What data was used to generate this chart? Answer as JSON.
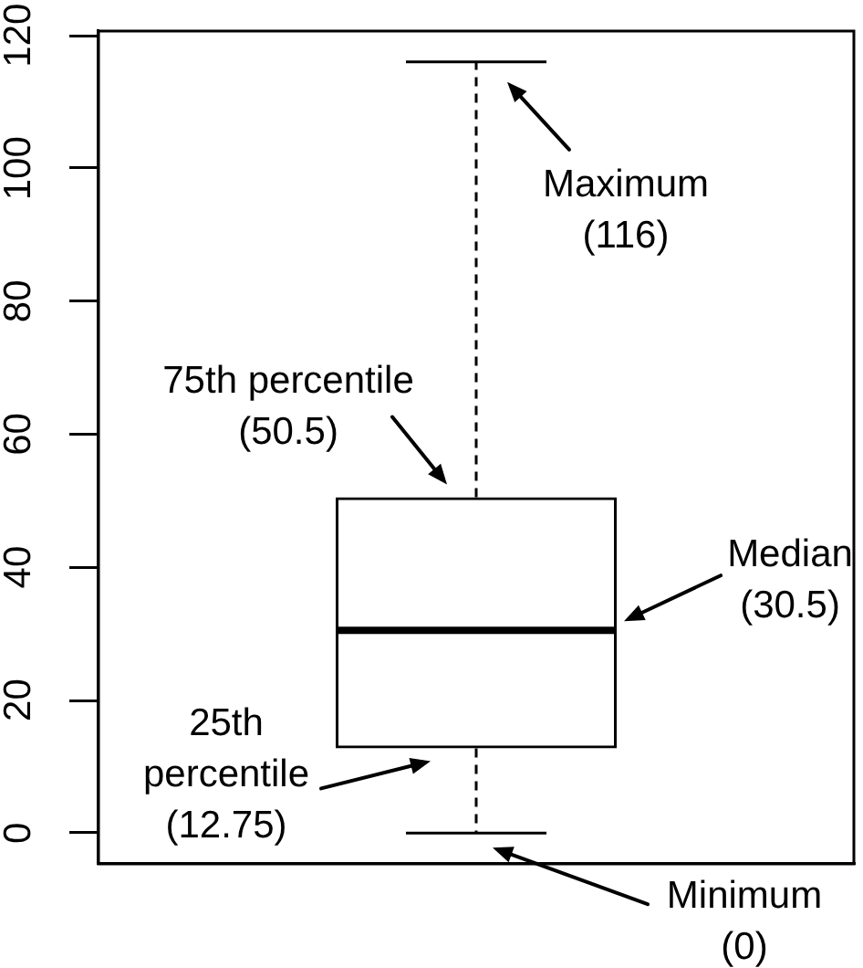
{
  "chart_data": {
    "type": "box",
    "categories": [
      null
    ],
    "boxes": [
      {
        "low": 0,
        "q1": 12.75,
        "median": 30.5,
        "q3": 50.5,
        "high": 116
      }
    ],
    "color": "#000000",
    "ylim": [
      -4.64,
      120.64
    ],
    "yticks": [
      0,
      20,
      40,
      60,
      80,
      100,
      120
    ],
    "tick_labels": "y",
    "annotations": [
      "Maximum\n(116)",
      "75th percentile\n(50.5)",
      "Median\n(30.5)",
      "25th\npercentile\n(12.75)",
      "Minimum\n(0)"
    ]
  }
}
